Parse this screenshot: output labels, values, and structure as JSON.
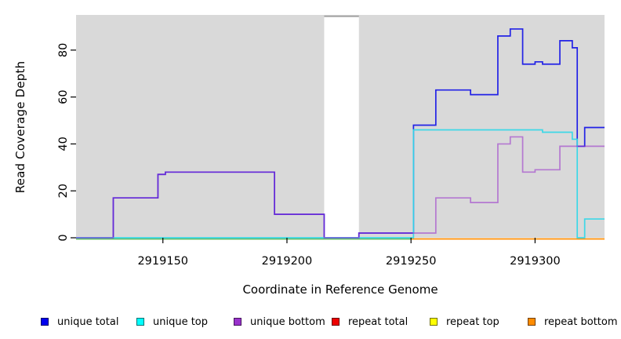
{
  "figure": {
    "background": "#ffffff",
    "panel_background": "#d9d9d9",
    "masked_band_edge_color": "#a5a5a5"
  },
  "y_axis": {
    "title": "Read Coverage Depth",
    "tick_labels": [
      "0",
      "20",
      "40",
      "60",
      "80"
    ]
  },
  "x_axis": {
    "title": "Coordinate in Reference Genome",
    "tick_labels": [
      "2919150",
      "2919200",
      "2919250",
      "2919300"
    ]
  },
  "legend": {
    "items": [
      {
        "label": "unique total",
        "color": "#0000ee"
      },
      {
        "label": "unique top",
        "color": "#00ffff"
      },
      {
        "label": "unique bottom",
        "color": "#9932cc"
      },
      {
        "label": "repeat total",
        "color": "#ee0000"
      },
      {
        "label": "repeat top",
        "color": "#ffff00"
      },
      {
        "label": "repeat bottom",
        "color": "#ff8c00"
      }
    ]
  },
  "chart_data": {
    "type": "line",
    "subtype": "step-coverage",
    "title": "",
    "xlabel": "Coordinate in Reference Genome",
    "ylabel": "Read Coverage Depth",
    "xlim": [
      2919115,
      2919328
    ],
    "ylim": [
      0,
      95
    ],
    "x_ticks": [
      2919150,
      2919200,
      2919250,
      2919300
    ],
    "y_ticks": [
      0,
      20,
      40,
      60,
      80
    ],
    "grid": false,
    "legend_position": "bottom",
    "masked_region": {
      "start": 2919215,
      "end": 2919229
    },
    "baseline_segments": [
      {
        "color": "#5dba5d",
        "start": 2919115,
        "end": 2919250,
        "note": "repeat top/total at 0 (renders green)"
      },
      {
        "color": "#ff8c00",
        "start": 2919250,
        "end": 2919328,
        "note": "repeat bottom at 0"
      }
    ],
    "series": [
      {
        "name": "unique total",
        "color": "#2222e6",
        "opacity": 1,
        "draw": true,
        "steps": [
          [
            2919115,
            0
          ],
          [
            2919130,
            17
          ],
          [
            2919148,
            27
          ],
          [
            2919151,
            28
          ],
          [
            2919195,
            10
          ],
          [
            2919215,
            0
          ],
          [
            2919229,
            2
          ],
          [
            2919251,
            48
          ],
          [
            2919260,
            63
          ],
          [
            2919274,
            61
          ],
          [
            2919285,
            86
          ],
          [
            2919290,
            89
          ],
          [
            2919295,
            74
          ],
          [
            2919300,
            75
          ],
          [
            2919303,
            74
          ],
          [
            2919310,
            84
          ],
          [
            2919315,
            81
          ],
          [
            2919317,
            39
          ],
          [
            2919320,
            47
          ]
        ]
      },
      {
        "name": "unique top",
        "color": "#35d8e8",
        "opacity": 0.95,
        "draw": true,
        "steps": [
          [
            2919115,
            0
          ],
          [
            2919251,
            46
          ],
          [
            2919303,
            45
          ],
          [
            2919315,
            42
          ],
          [
            2919317,
            0
          ],
          [
            2919320,
            8
          ]
        ]
      },
      {
        "name": "unique bottom",
        "color": "#9932cc",
        "opacity": 0.58,
        "draw": true,
        "steps": [
          [
            2919115,
            0
          ],
          [
            2919130,
            17
          ],
          [
            2919148,
            27
          ],
          [
            2919151,
            28
          ],
          [
            2919195,
            10
          ],
          [
            2919215,
            0
          ],
          [
            2919229,
            2
          ],
          [
            2919260,
            17
          ],
          [
            2919274,
            15
          ],
          [
            2919285,
            40
          ],
          [
            2919290,
            43
          ],
          [
            2919295,
            28
          ],
          [
            2919300,
            29
          ],
          [
            2919310,
            39
          ]
        ]
      },
      {
        "name": "repeat total",
        "color": "#ee0000",
        "opacity": 1,
        "draw": false,
        "steps": [
          [
            2919115,
            0
          ]
        ]
      },
      {
        "name": "repeat top",
        "color": "#ffff00",
        "opacity": 1,
        "draw": false,
        "steps": [
          [
            2919115,
            0
          ]
        ]
      },
      {
        "name": "repeat bottom",
        "color": "#ff8c00",
        "opacity": 1,
        "draw": false,
        "steps": [
          [
            2919250,
            0
          ]
        ]
      }
    ]
  }
}
